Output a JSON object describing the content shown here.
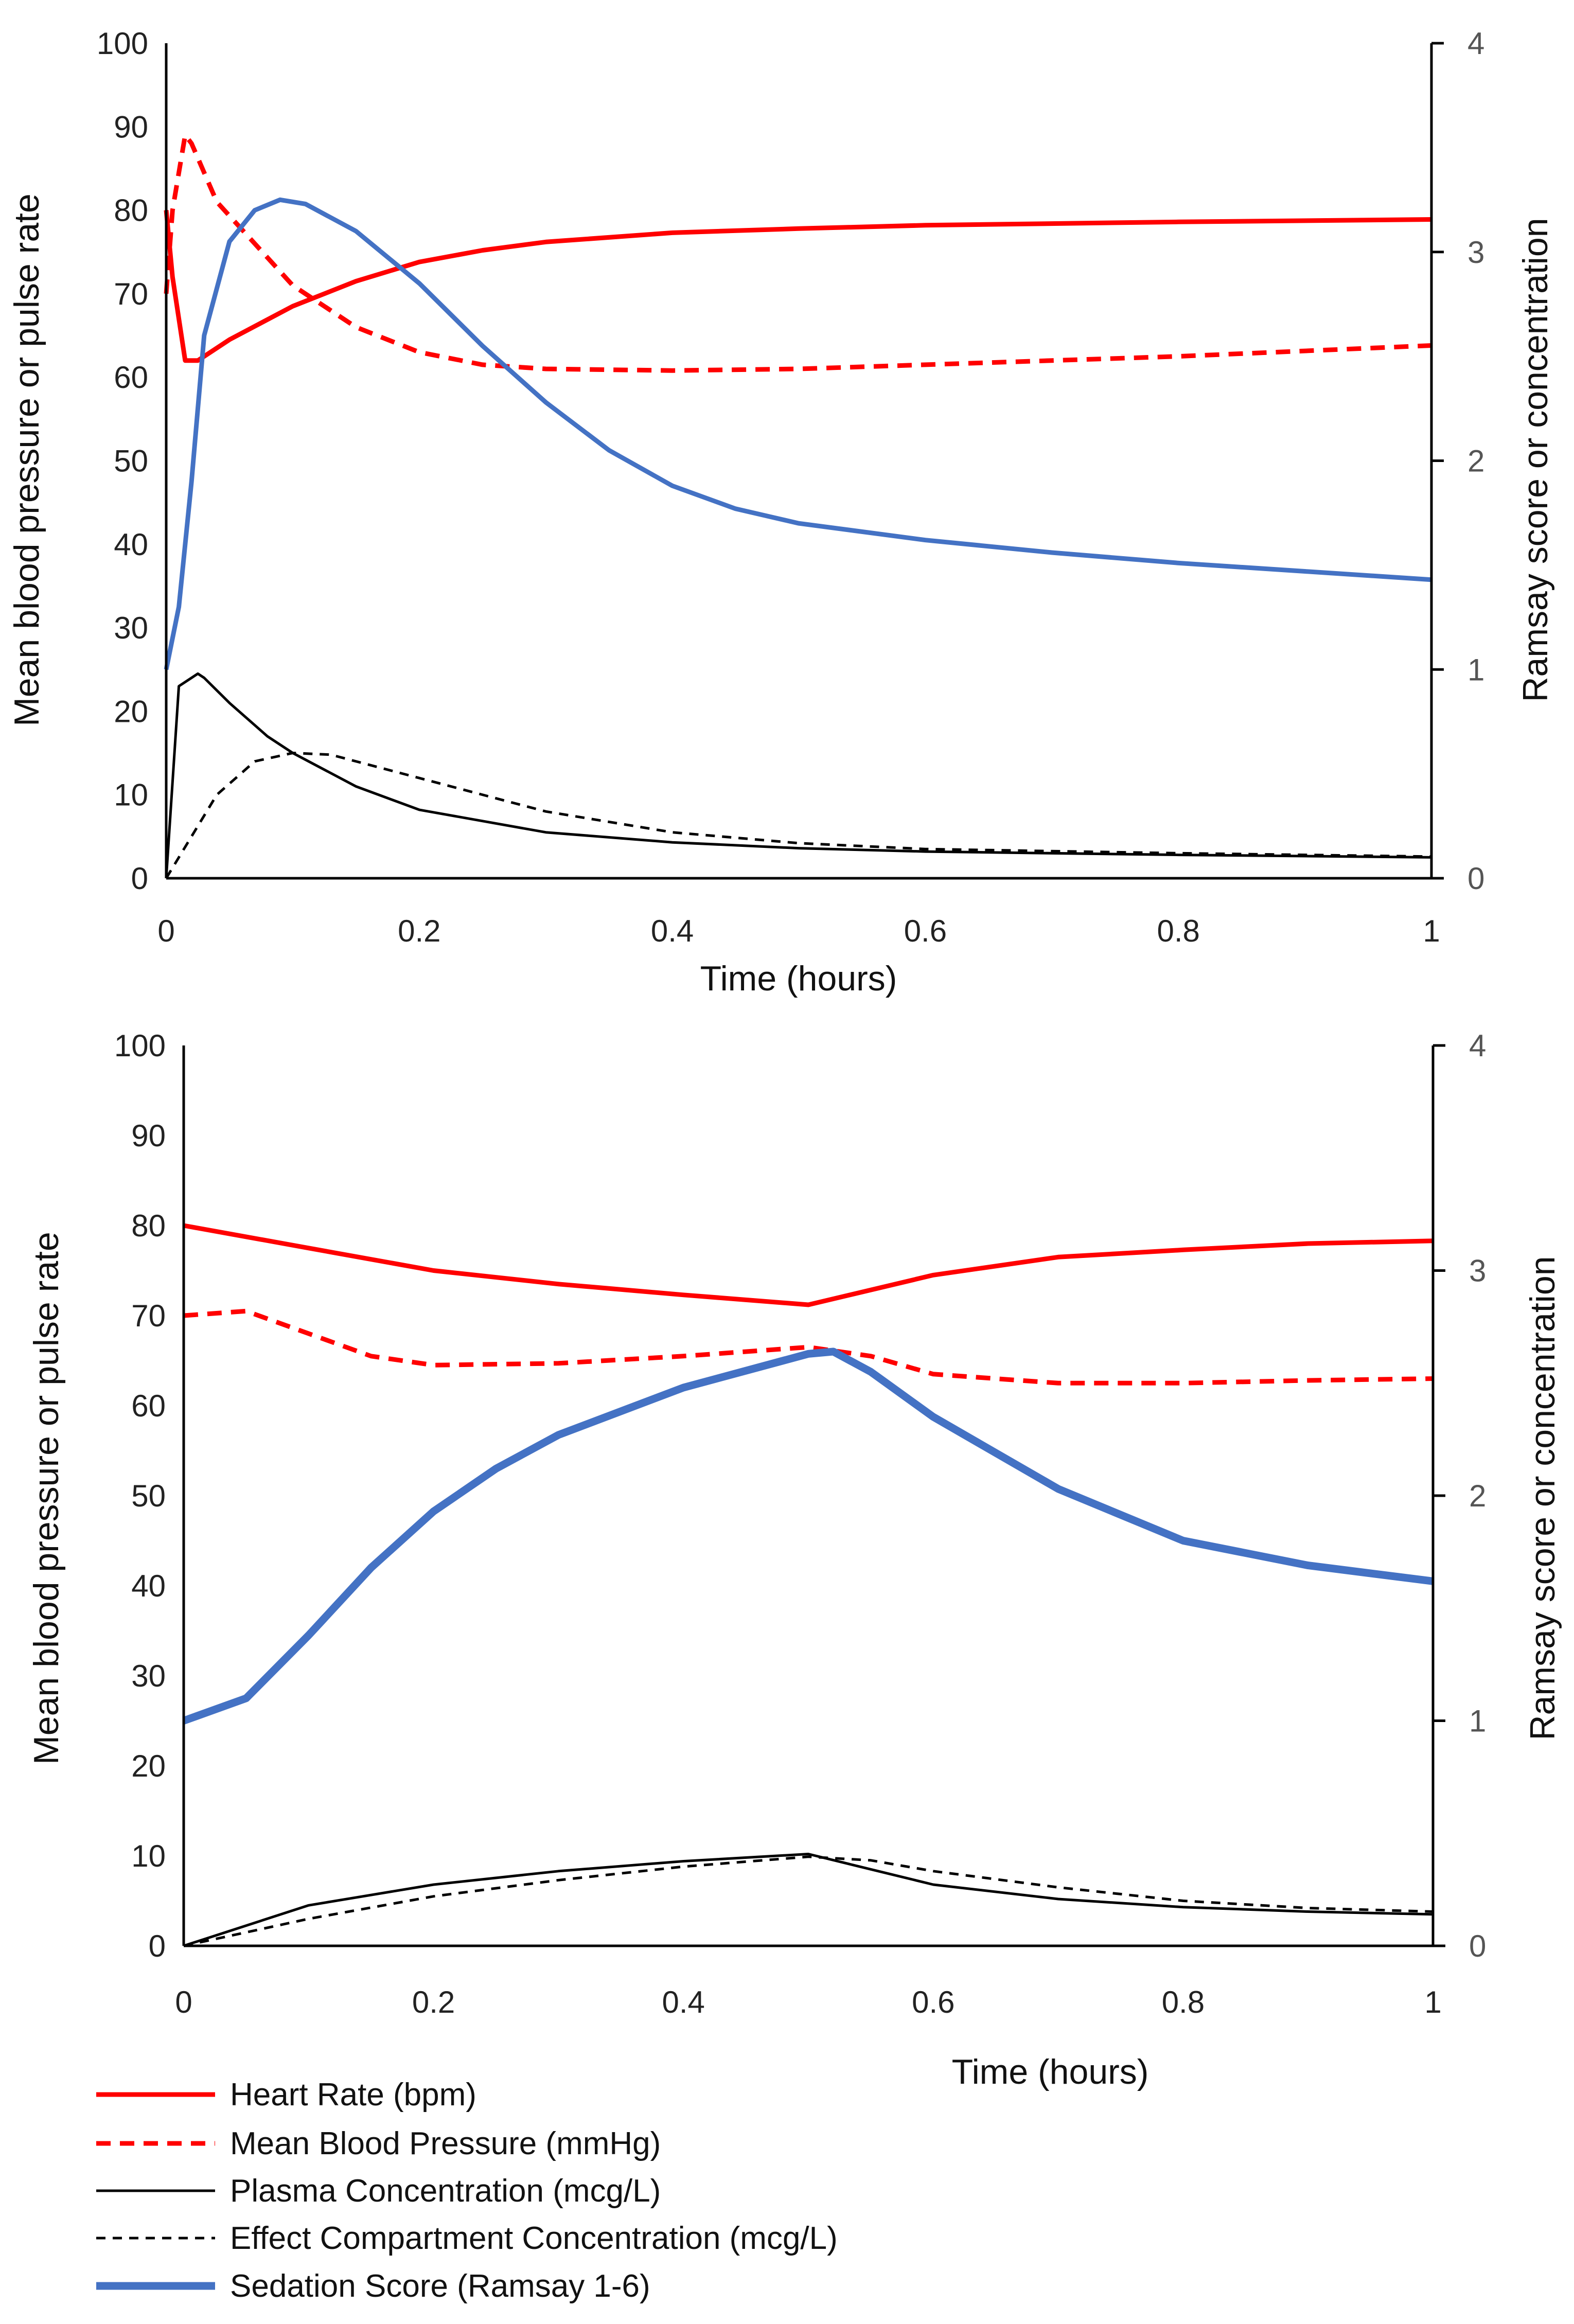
{
  "chart_data": [
    {
      "type": "line",
      "xlabel": "Time (hours)",
      "ylabel": "Mean blood pressure or pulse rate",
      "y2label": "Ramsay score or concentration",
      "xlim": [
        0,
        1
      ],
      "ylim": [
        0,
        100
      ],
      "y2lim": [
        0,
        4
      ],
      "xticks": [
        "0",
        "0.2",
        "0.4",
        "0.6",
        "0.8",
        "1"
      ],
      "yticks": [
        "0",
        "10",
        "20",
        "30",
        "40",
        "50",
        "60",
        "70",
        "80",
        "90",
        "100"
      ],
      "y2ticks": [
        "0",
        "1",
        "2",
        "3",
        "4"
      ],
      "grid": false,
      "series": [
        {
          "name": "Heart Rate (bpm)",
          "axis": "left",
          "x": [
            0,
            0.005,
            0.015,
            0.025,
            0.05,
            0.1,
            0.15,
            0.2,
            0.25,
            0.3,
            0.4,
            0.5,
            0.6,
            0.8,
            1
          ],
          "y": [
            80,
            72,
            62,
            62,
            64.5,
            68.5,
            71.5,
            73.8,
            75.2,
            76.2,
            77.3,
            77.8,
            78.2,
            78.6,
            78.9
          ]
        },
        {
          "name": "Mean Blood Pressure (mmHg)",
          "axis": "left",
          "x": [
            0,
            0.005,
            0.015,
            0.02,
            0.04,
            0.07,
            0.1,
            0.15,
            0.2,
            0.25,
            0.3,
            0.4,
            0.5,
            0.6,
            0.8,
            1
          ],
          "y": [
            70,
            80,
            89,
            88,
            81,
            76,
            71,
            66,
            63,
            61.5,
            61,
            60.8,
            61,
            61.5,
            62.5,
            63.8
          ]
        },
        {
          "name": "Plasma Concentration (mcg/L)",
          "axis": "left",
          "x": [
            0,
            0.01,
            0.02,
            0.025,
            0.03,
            0.05,
            0.08,
            0.1,
            0.15,
            0.2,
            0.3,
            0.4,
            0.5,
            0.6,
            0.8,
            1
          ],
          "y": [
            0,
            23,
            24,
            24.5,
            24,
            21,
            17,
            15,
            11,
            8.2,
            5.5,
            4.3,
            3.6,
            3.2,
            2.8,
            2.5
          ]
        },
        {
          "name": "Effect Compartment Concentration (mcg/L)",
          "axis": "left",
          "x": [
            0,
            0.02,
            0.04,
            0.07,
            0.1,
            0.13,
            0.2,
            0.3,
            0.4,
            0.5,
            0.6,
            0.8,
            1
          ],
          "y": [
            0,
            5,
            10,
            14,
            15,
            14.8,
            12,
            8,
            5.5,
            4.2,
            3.5,
            3,
            2.6
          ]
        },
        {
          "name": "Sedation Score (Ramsay 1-6)",
          "axis": "right",
          "x": [
            0,
            0.01,
            0.02,
            0.03,
            0.05,
            0.07,
            0.09,
            0.11,
            0.15,
            0.2,
            0.25,
            0.3,
            0.35,
            0.4,
            0.45,
            0.5,
            0.6,
            0.7,
            0.8,
            0.9,
            1
          ],
          "y": [
            1,
            1.3,
            1.9,
            2.6,
            3.05,
            3.2,
            3.25,
            3.23,
            3.1,
            2.85,
            2.55,
            2.28,
            2.05,
            1.88,
            1.77,
            1.7,
            1.62,
            1.56,
            1.51,
            1.47,
            1.43
          ]
        }
      ]
    },
    {
      "type": "line",
      "xlabel": "Time (hours)",
      "ylabel": "Mean blood pressure or pulse rate",
      "y2label": "Ramsay score or concentration",
      "xlim": [
        0,
        1
      ],
      "ylim": [
        0,
        100
      ],
      "y2lim": [
        0,
        4
      ],
      "xticks": [
        "0",
        "0.2",
        "0.4",
        "0.6",
        "0.8",
        "1"
      ],
      "yticks": [
        "0",
        "10",
        "20",
        "30",
        "40",
        "50",
        "60",
        "70",
        "80",
        "90",
        "100"
      ],
      "y2ticks": [
        "0",
        "1",
        "2",
        "3",
        "4"
      ],
      "grid": false,
      "series": [
        {
          "name": "Heart Rate (bpm)",
          "axis": "left",
          "x": [
            0,
            0.1,
            0.2,
            0.3,
            0.4,
            0.5,
            0.6,
            0.7,
            0.8,
            0.9,
            1
          ],
          "y": [
            80,
            77.5,
            75,
            73.5,
            72.3,
            71.2,
            74.5,
            76.5,
            77.3,
            78,
            78.3
          ]
        },
        {
          "name": "Mean Blood Pressure (mmHg)",
          "axis": "left",
          "x": [
            0,
            0.05,
            0.1,
            0.15,
            0.2,
            0.3,
            0.4,
            0.5,
            0.55,
            0.6,
            0.7,
            0.8,
            0.9,
            1
          ],
          "y": [
            70,
            70.5,
            68,
            65.5,
            64.5,
            64.7,
            65.5,
            66.5,
            65.5,
            63.5,
            62.5,
            62.5,
            62.8,
            63
          ]
        },
        {
          "name": "Plasma Concentration (mcg/L)",
          "axis": "left",
          "x": [
            0,
            0.1,
            0.2,
            0.3,
            0.4,
            0.5,
            0.55,
            0.6,
            0.7,
            0.8,
            0.9,
            1
          ],
          "y": [
            0,
            4.5,
            6.8,
            8.3,
            9.4,
            10.2,
            8.5,
            6.8,
            5.2,
            4.3,
            3.8,
            3.5
          ]
        },
        {
          "name": "Effect Compartment Concentration (mcg/L)",
          "axis": "left",
          "x": [
            0,
            0.1,
            0.2,
            0.3,
            0.4,
            0.5,
            0.55,
            0.6,
            0.7,
            0.8,
            0.9,
            1
          ],
          "y": [
            0,
            3,
            5.5,
            7.3,
            8.8,
            9.9,
            9.5,
            8.3,
            6.5,
            5,
            4.2,
            3.8
          ]
        },
        {
          "name": "Sedation Score (Ramsay 1-6)",
          "axis": "right",
          "x": [
            0,
            0.05,
            0.1,
            0.15,
            0.2,
            0.25,
            0.3,
            0.4,
            0.5,
            0.52,
            0.55,
            0.6,
            0.7,
            0.8,
            0.9,
            1
          ],
          "y": [
            1,
            1.1,
            1.38,
            1.68,
            1.93,
            2.12,
            2.27,
            2.48,
            2.63,
            2.64,
            2.55,
            2.35,
            2.03,
            1.8,
            1.69,
            1.62
          ]
        }
      ]
    }
  ],
  "legend": [
    {
      "label": "Heart Rate (bpm)",
      "color": "#ff0000",
      "style": "solid"
    },
    {
      "label": "Mean Blood Pressure (mmHg)",
      "color": "#ff0000",
      "style": "dashed"
    },
    {
      "label": "Plasma Concentration (mcg/L)",
      "color": "#000000",
      "style": "solid"
    },
    {
      "label": "Effect Compartment Concentration (mcg/L)",
      "color": "#000000",
      "style": "dashed"
    },
    {
      "label": "Sedation Score (Ramsay 1-6)",
      "color": "#4472c4",
      "style": "solid"
    }
  ]
}
